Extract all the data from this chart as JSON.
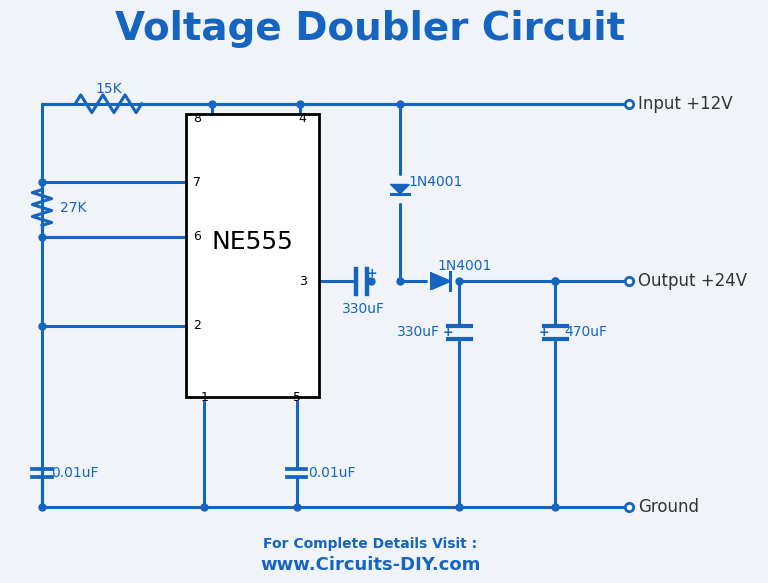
{
  "title": "Voltage Doubler Circuit",
  "title_color": "#1565C0",
  "title_fontsize": 28,
  "wire_color": "#1565C0",
  "wire_lw": 2.2,
  "component_color": "#1565C0",
  "label_color": "#1565C0",
  "label_fontsize": 10,
  "ic_box_color": "black",
  "ic_label": "NE555",
  "ic_label_fontsize": 18,
  "pin_label_fontsize": 9,
  "io_label_color": "#333333",
  "io_label_fontsize": 12,
  "footer_bold": "For Complete Details Visit :",
  "footer_url": "www.Circuits-DIY.com",
  "footer_color": "#1565C0",
  "bg_color": "#f0f4f8",
  "fig_bg": "#f0f4f8"
}
